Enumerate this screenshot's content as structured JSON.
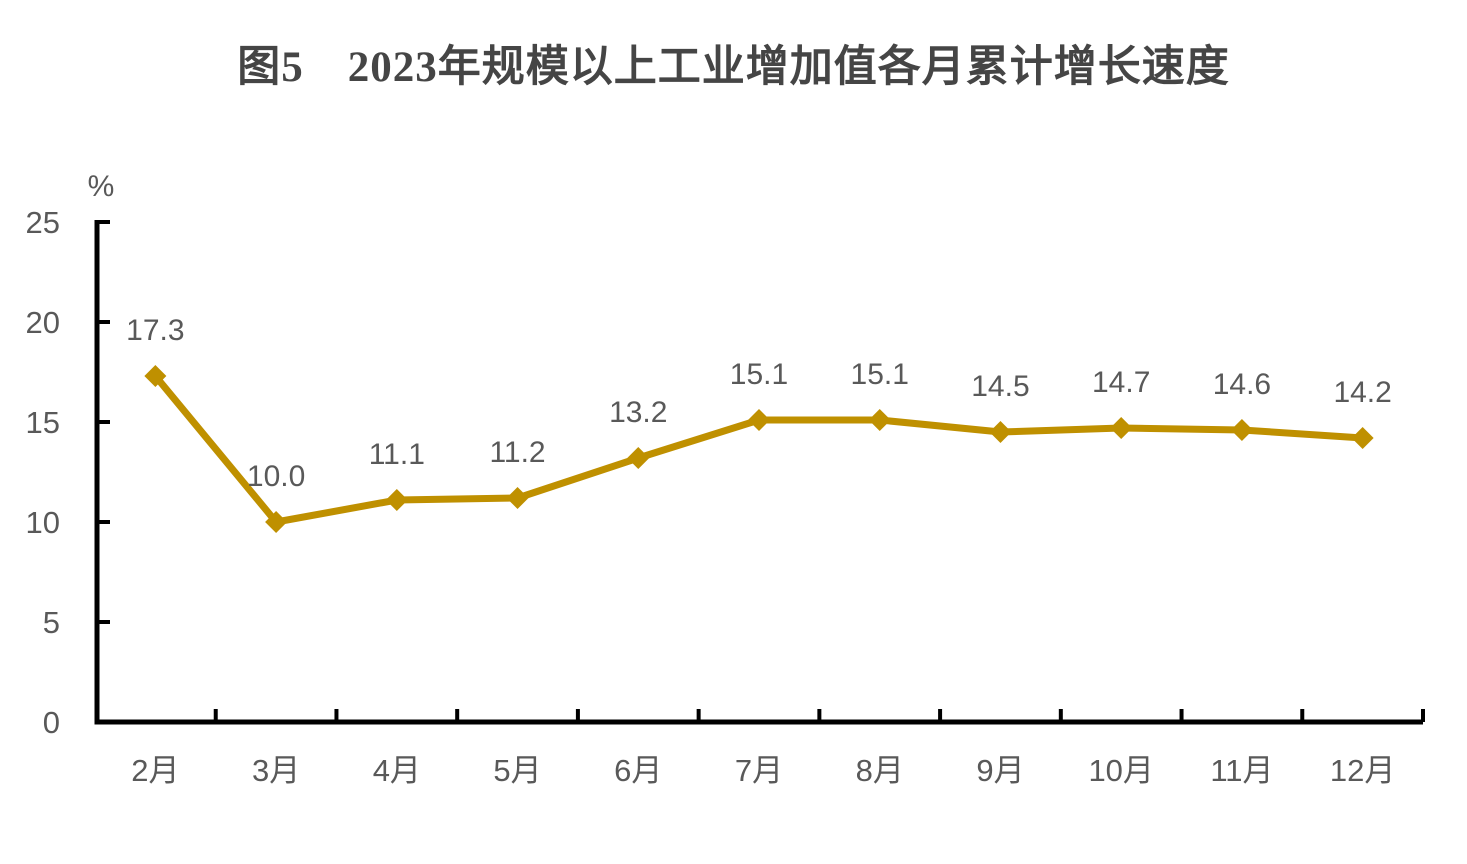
{
  "title": "图5　2023年规模以上工业增加值各月累计增长速度",
  "chart_data": {
    "type": "line",
    "title": "图5　2023年规模以上工业增加值各月累计增长速度",
    "unit_label": "%",
    "categories": [
      "2月",
      "3月",
      "4月",
      "5月",
      "6月",
      "7月",
      "8月",
      "9月",
      "10月",
      "11月",
      "12月"
    ],
    "values": [
      17.3,
      10.0,
      11.1,
      11.2,
      13.2,
      15.1,
      15.1,
      14.5,
      14.7,
      14.6,
      14.2
    ],
    "value_labels": [
      "17.3",
      "10.0",
      "11.1",
      "11.2",
      "13.2",
      "15.1",
      "15.1",
      "14.5",
      "14.7",
      "14.6",
      "14.2"
    ],
    "ylim": [
      0,
      25
    ],
    "yticks": [
      0,
      5,
      10,
      15,
      20,
      25
    ],
    "ytick_labels": [
      "0",
      "5",
      "10",
      "15",
      "20",
      "25"
    ],
    "xlabel": "",
    "ylabel": "%",
    "grid": false,
    "legend": "none",
    "marker": "diamond",
    "data_labels": "above",
    "colors": {
      "line": "#BF9000",
      "marker": "#BF9000",
      "axis": "#000000",
      "tick_label": "#595959",
      "data_label": "#595959",
      "title": "#454545",
      "background": "#FFFFFF"
    }
  }
}
